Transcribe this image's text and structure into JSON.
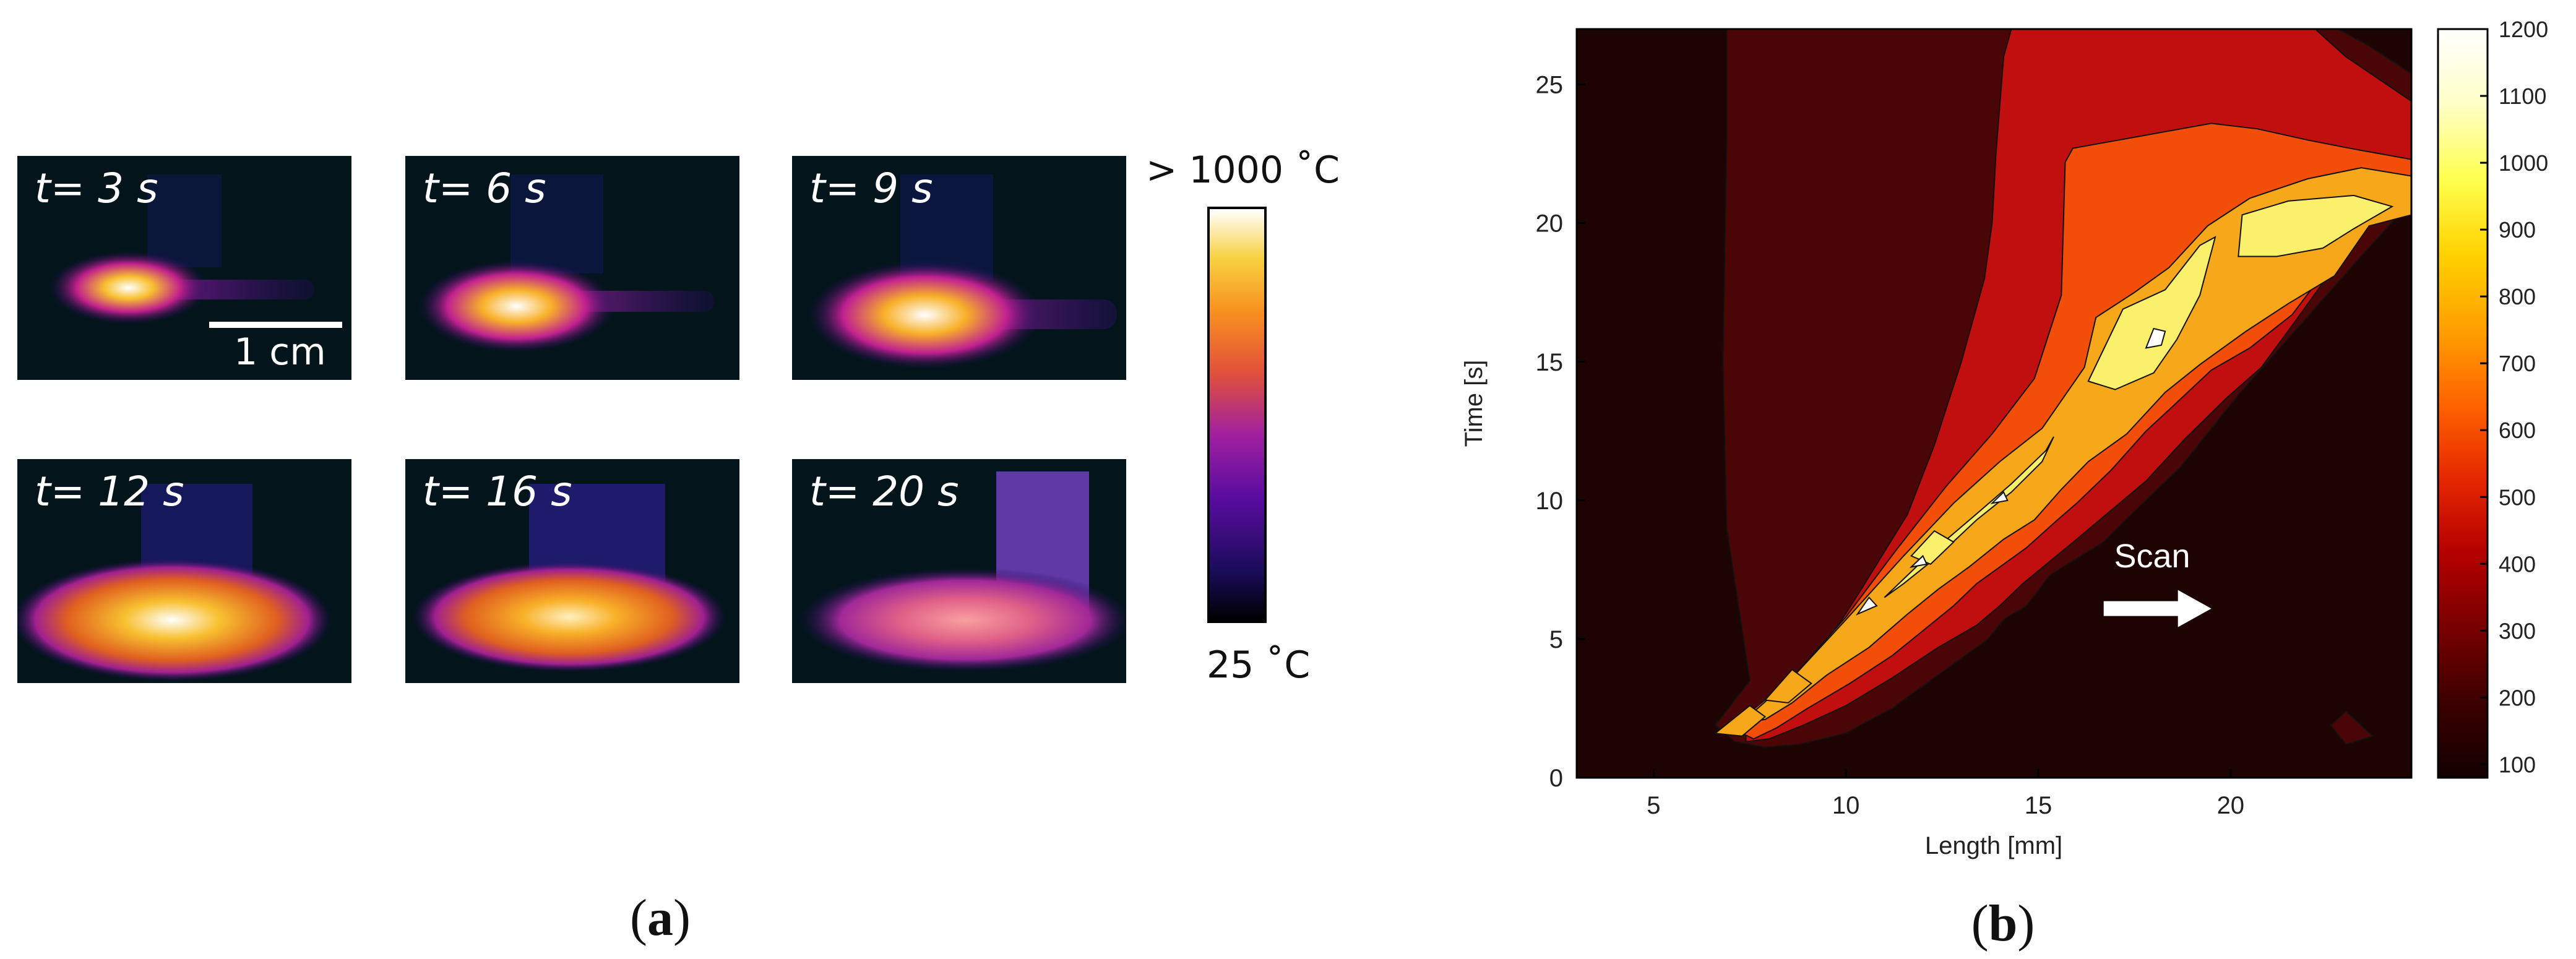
{
  "panel_a": {
    "frames": [
      {
        "label": "t= 3 s",
        "t": 3
      },
      {
        "label": "t= 6 s",
        "t": 6
      },
      {
        "label": "t= 9 s",
        "t": 9
      },
      {
        "label": "t= 12 s",
        "t": 12
      },
      {
        "label": "t= 16 s",
        "t": 16
      },
      {
        "label": "t= 20 s",
        "t": 20
      }
    ],
    "scale_bar_label": "1 cm",
    "colorbar_max_label": "> 1000 ˚C",
    "colorbar_min_label": "25 ˚C",
    "colormap": [
      "#000000",
      "#1a0c5a",
      "#5a0ca0",
      "#a020a0",
      "#e0503c",
      "#f89020",
      "#f8d040",
      "#ffffff"
    ]
  },
  "labels": {
    "a": "a",
    "b": "b"
  },
  "chart_data": {
    "type": "heatmap",
    "title": "",
    "xlabel": "Length [mm]",
    "ylabel": "Time [s]",
    "xlim": [
      3,
      24.7
    ],
    "ylim": [
      0,
      27
    ],
    "xticks": [
      5,
      10,
      15,
      20
    ],
    "yticks": [
      0,
      5,
      10,
      15,
      20,
      25
    ],
    "colorbar": {
      "range": [
        80,
        1200
      ],
      "ticks": [
        100,
        200,
        300,
        400,
        500,
        600,
        700,
        800,
        900,
        1000,
        1100,
        1200
      ],
      "colors": [
        "#140000",
        "#3c0000",
        "#780000",
        "#b40000",
        "#e62800",
        "#ff6400",
        "#ffa000",
        "#ffd200",
        "#ffff50",
        "#ffffc8",
        "#ffffff"
      ]
    },
    "contour_levels": [
      {
        "level": 100,
        "color": "#1e0303"
      },
      {
        "level": 200,
        "color": "#4a0606"
      },
      {
        "level": 400,
        "color": "#c10e0e"
      },
      {
        "level": 600,
        "color": "#f24e0a"
      },
      {
        "level": 800,
        "color": "#f7a81a"
      },
      {
        "level": 1000,
        "color": "#fbf06c"
      },
      {
        "level": 1150,
        "color": "#ffffff"
      }
    ],
    "annotation": {
      "text": "Scan",
      "arrow_x": [
        16.7,
        19.5
      ],
      "arrow_y": 6.1
    }
  }
}
